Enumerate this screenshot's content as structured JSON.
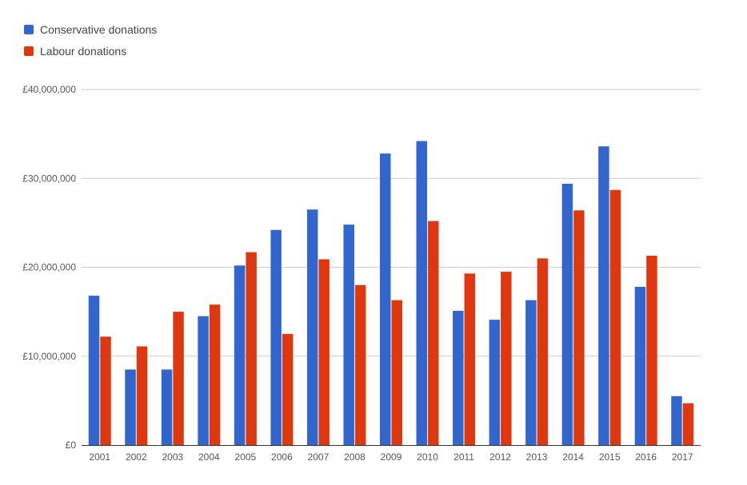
{
  "chart_data": {
    "type": "bar",
    "categories": [
      "2001",
      "2002",
      "2003",
      "2004",
      "2005",
      "2006",
      "2007",
      "2008",
      "2009",
      "2010",
      "2011",
      "2012",
      "2013",
      "2014",
      "2015",
      "2016",
      "2017"
    ],
    "series": [
      {
        "name": "Conservative donations",
        "color": "#3366cc",
        "values": [
          16800000,
          8500000,
          8500000,
          14500000,
          20200000,
          24200000,
          26500000,
          24800000,
          32800000,
          34200000,
          15100000,
          14100000,
          16300000,
          29400000,
          33600000,
          17800000,
          5500000
        ]
      },
      {
        "name": "Labour donations",
        "color": "#dc3912",
        "values": [
          12200000,
          11100000,
          15000000,
          15800000,
          21700000,
          12500000,
          20900000,
          18000000,
          16300000,
          25200000,
          19300000,
          19500000,
          21000000,
          26400000,
          28700000,
          21300000,
          4700000
        ]
      }
    ],
    "ylim": [
      0,
      40000000
    ],
    "y_ticks": [
      {
        "value": 0,
        "label": "£0"
      },
      {
        "value": 10000000,
        "label": "£10,000,000"
      },
      {
        "value": 20000000,
        "label": "£20,000,000"
      },
      {
        "value": 30000000,
        "label": "£30,000,000"
      },
      {
        "value": 40000000,
        "label": "£40,000,000"
      }
    ],
    "grid": true,
    "legend_position": "top-left"
  }
}
